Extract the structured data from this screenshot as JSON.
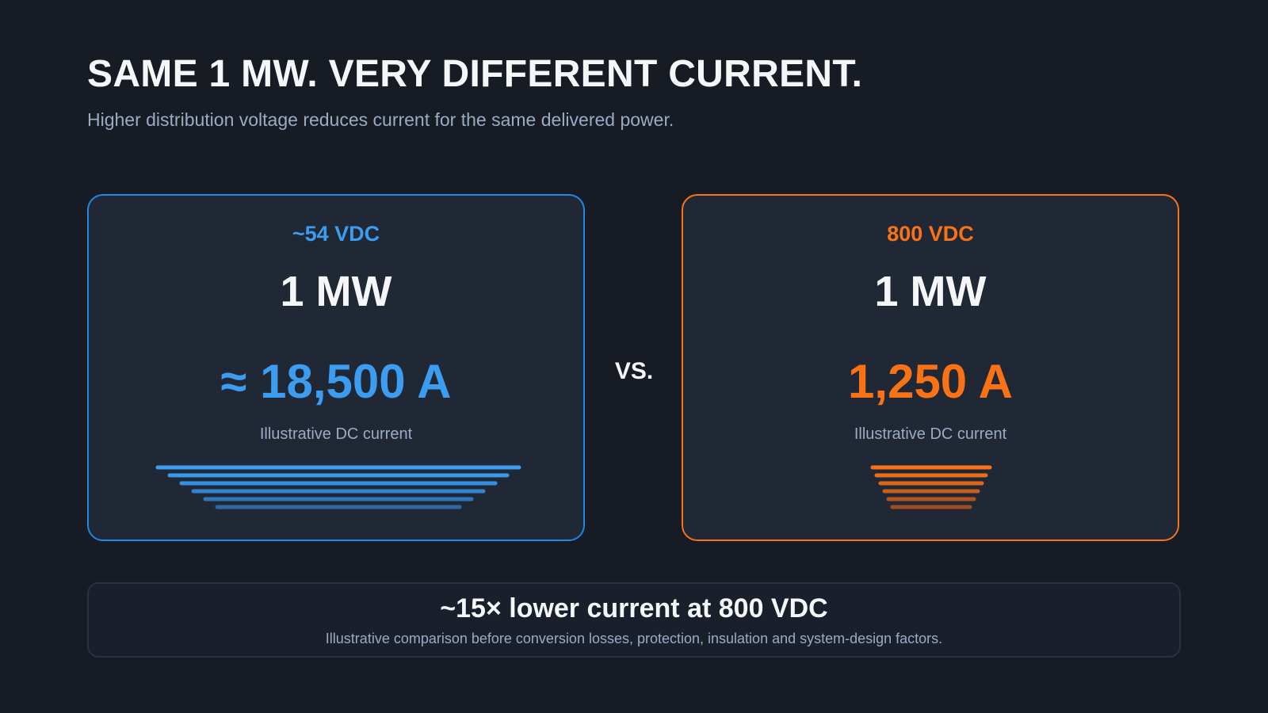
{
  "header": {
    "title": "SAME 1 MW. VERY DIFFERENT CURRENT.",
    "subtitle": "Higher distribution voltage reduces current for the same delivered power."
  },
  "cards": [
    {
      "voltage": "~54 VDC",
      "power": "1 MW",
      "current": "≈ 18,500 A",
      "caption": "Illustrative DC current"
    },
    {
      "voltage": "800 VDC",
      "power": "1 MW",
      "current": "1,250 A",
      "caption": "Illustrative DC current"
    }
  ],
  "separator": "VS.",
  "footer": {
    "headline": "~15× lower current at 800 VDC",
    "note": "Illustrative comparison before conversion losses, protection, insulation and system-design factors."
  }
}
